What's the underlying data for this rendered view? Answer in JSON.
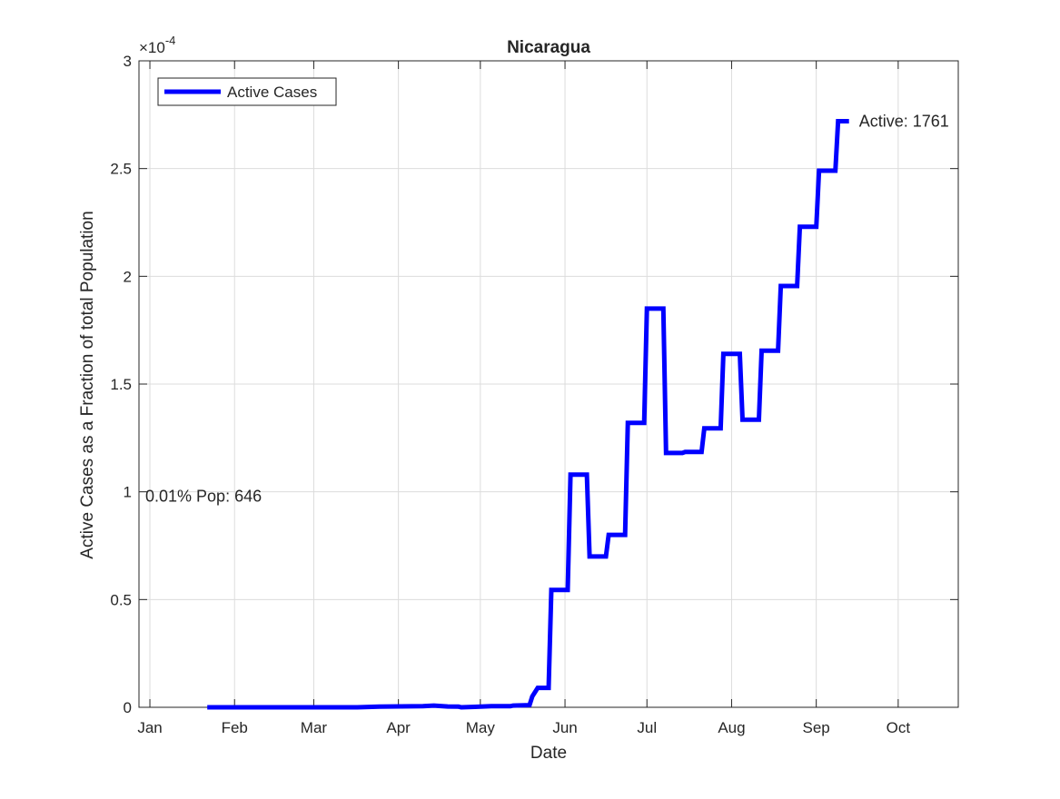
{
  "chart_data": {
    "type": "line",
    "title": "Nicaragua",
    "xlabel": "Date",
    "ylabel": "Active Cases as a Fraction of total Population",
    "y_exponent_label": "×10",
    "y_exponent_power": "-4",
    "x_tick_labels": [
      "Jan",
      "Feb",
      "Mar",
      "Apr",
      "May",
      "Jun",
      "Jul",
      "Aug",
      "Sep",
      "Oct"
    ],
    "x_tick_dates": [
      "2020-01-01",
      "2020-02-01",
      "2020-03-01",
      "2020-04-01",
      "2020-05-01",
      "2020-06-01",
      "2020-07-01",
      "2020-08-01",
      "2020-09-01",
      "2020-10-01"
    ],
    "xlim": [
      "2019-12-28",
      "2020-10-23"
    ],
    "ylim": [
      0,
      0.0003
    ],
    "y_ticks": [
      0,
      5e-05,
      0.0001,
      0.00015,
      0.0002,
      0.00025,
      0.0003
    ],
    "y_tick_labels": [
      "0",
      "0.5",
      "1",
      "1.5",
      "2",
      "2.5",
      "3"
    ],
    "grid": true,
    "legend_position": "top-left",
    "series": [
      {
        "name": "Active Cases",
        "color": "#0000ff",
        "points": [
          [
            "2020-01-22",
            0
          ],
          [
            "2020-03-17",
            0
          ],
          [
            "2020-03-25",
            3e-07
          ],
          [
            "2020-04-10",
            5e-07
          ],
          [
            "2020-04-14",
            8e-07
          ],
          [
            "2020-04-19",
            4e-07
          ],
          [
            "2020-04-23",
            3e-07
          ],
          [
            "2020-04-24",
            0
          ],
          [
            "2020-04-29",
            2e-07
          ],
          [
            "2020-05-05",
            5e-07
          ],
          [
            "2020-05-12",
            5e-07
          ],
          [
            "2020-05-13",
            8e-07
          ],
          [
            "2020-05-19",
            1e-06
          ],
          [
            "2020-05-20",
            5e-06
          ],
          [
            "2020-05-22",
            9e-06
          ],
          [
            "2020-05-26",
            9e-06
          ],
          [
            "2020-05-27",
            5.45e-05
          ],
          [
            "2020-06-02",
            5.45e-05
          ],
          [
            "2020-06-03",
            0.000108
          ],
          [
            "2020-06-09",
            0.000108
          ],
          [
            "2020-06-10",
            7e-05
          ],
          [
            "2020-06-16",
            7e-05
          ],
          [
            "2020-06-17",
            8e-05
          ],
          [
            "2020-06-23",
            8e-05
          ],
          [
            "2020-06-24",
            0.000132
          ],
          [
            "2020-06-30",
            0.000132
          ],
          [
            "2020-07-01",
            0.000185
          ],
          [
            "2020-07-07",
            0.000185
          ],
          [
            "2020-07-08",
            0.000118
          ],
          [
            "2020-07-14",
            0.000118
          ],
          [
            "2020-07-15",
            0.0001185
          ],
          [
            "2020-07-21",
            0.0001185
          ],
          [
            "2020-07-22",
            0.0001295
          ],
          [
            "2020-07-28",
            0.0001295
          ],
          [
            "2020-07-29",
            0.000164
          ],
          [
            "2020-08-04",
            0.000164
          ],
          [
            "2020-08-05",
            0.0001335
          ],
          [
            "2020-08-11",
            0.0001335
          ],
          [
            "2020-08-12",
            0.0001655
          ],
          [
            "2020-08-18",
            0.0001655
          ],
          [
            "2020-08-19",
            0.0001955
          ],
          [
            "2020-08-25",
            0.0001955
          ],
          [
            "2020-08-26",
            0.000223
          ],
          [
            "2020-09-01",
            0.000223
          ],
          [
            "2020-09-02",
            0.000249
          ],
          [
            "2020-09-08",
            0.000249
          ],
          [
            "2020-09-09",
            0.000272
          ],
          [
            "2020-09-13",
            0.000272
          ]
        ]
      }
    ],
    "annotations": [
      {
        "text": "Active: 1761",
        "anchor_date": "2020-09-13",
        "anchor_y": 0.000272
      },
      {
        "text": "0.01% Pop: 646",
        "anchor_date": "2019-12-28",
        "anchor_y": 0.0001
      }
    ]
  }
}
